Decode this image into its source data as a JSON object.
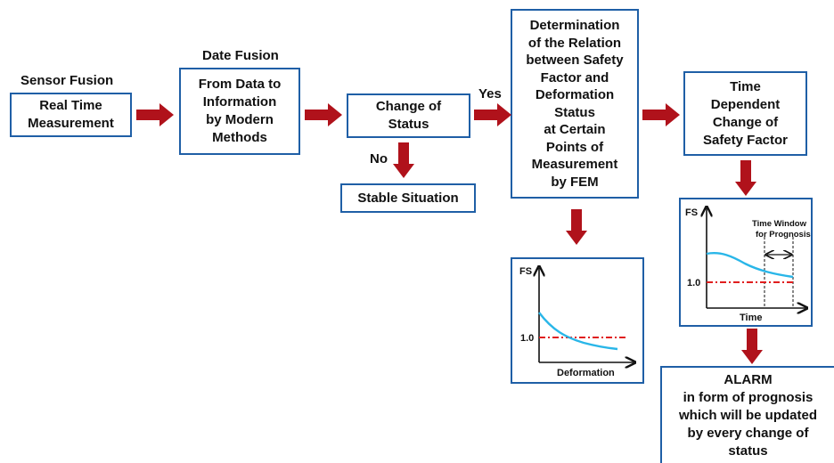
{
  "labels": {
    "sensor_fusion": "Sensor Fusion",
    "date_fusion": "Date Fusion",
    "yes": "Yes",
    "no": "No"
  },
  "boxes": {
    "real_time": "Real Time\nMeasurement",
    "from_data": "From Data to\nInformation\nby Modern\nMethods",
    "change_status": "Change of\nStatus",
    "stable": "Stable Situation",
    "determination": "Determination\nof the Relation\nbetween Safety\nFactor and\nDeformation\nStatus\nat Certain\nPoints of\nMeasurement\nby FEM",
    "time_dependent": "Time\nDependent\nChange of\nSafety Factor",
    "alarm": "ALARM\nin form of prognosis\nwhich will be updated\nby every change of\nstatus"
  },
  "plot_fem": {
    "ylabel": "FS",
    "xlabel": "Deformation",
    "threshold_label": "1.0"
  },
  "plot_time": {
    "ylabel": "FS",
    "xlabel": "Time",
    "threshold_label": "1.0",
    "window_label_1": "Time Window",
    "window_label_2": "for Prognosis"
  },
  "colors": {
    "box_border": "#1f5fa6",
    "arrow": "#b0121b",
    "curve": "#29b6e8",
    "threshold": "#e01e1e"
  }
}
